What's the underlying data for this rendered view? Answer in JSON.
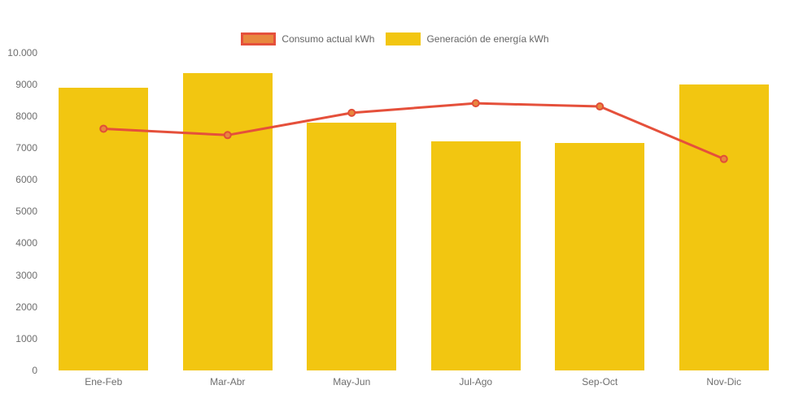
{
  "chart_data": {
    "type": "combo-bar-line",
    "title": "",
    "categories": [
      "Ene-Feb",
      "Mar-Abr",
      "May-Jun",
      "Jul-Ago",
      "Sep-Oct",
      "Nov-Dic"
    ],
    "series": [
      {
        "name": "Consumo actual kWh",
        "type": "line",
        "values": [
          7600,
          7400,
          8100,
          8400,
          8300,
          6650
        ],
        "line_color": "#e5503b",
        "point_fill": "#e8873e",
        "point_border": "#e14e38"
      },
      {
        "name": "Generación de energía kWh",
        "type": "bar",
        "values": [
          8900,
          9350,
          7800,
          7200,
          7150,
          9000
        ],
        "bar_color": "#f2c611"
      }
    ],
    "ylim": [
      0,
      10000
    ],
    "y_ticks": [
      {
        "value": 10000,
        "label": "10.000"
      },
      {
        "value": 9000,
        "label": "9000"
      },
      {
        "value": 8000,
        "label": "8000"
      },
      {
        "value": 7000,
        "label": "7000"
      },
      {
        "value": 6000,
        "label": "6000"
      },
      {
        "value": 5000,
        "label": "5000"
      },
      {
        "value": 4000,
        "label": "4000"
      },
      {
        "value": 3000,
        "label": "3000"
      },
      {
        "value": 2000,
        "label": "2000"
      },
      {
        "value": 1000,
        "label": "1000"
      },
      {
        "value": 0,
        "label": "0"
      }
    ],
    "grid": false,
    "legend_position": "top",
    "axis_text_color": "#6e6e6e",
    "legend_text_color": "#666666"
  }
}
